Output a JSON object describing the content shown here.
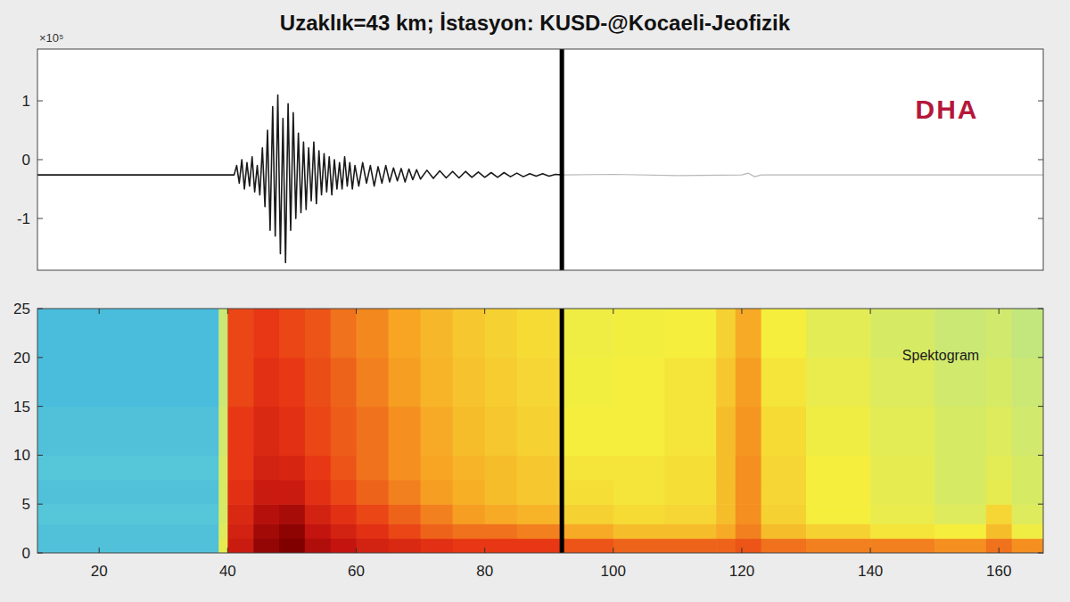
{
  "chart_data": [
    {
      "type": "line",
      "title": "Uzaklık=43 km; İstasyon: KUSD-@Kocaeli-Jeofizik",
      "annotations": [
        "×10⁵",
        "DHA"
      ],
      "xlim": [
        10.4,
        166.9
      ],
      "ylim": [
        -1.88,
        1.88
      ],
      "yticks": [
        -1,
        0,
        1
      ],
      "tick_labels": "y",
      "grid": false,
      "cursor_x": 92,
      "series": [
        {
          "color": "#1a1a1a",
          "x": [
            10.4,
            20,
            30,
            41,
            41.4,
            41.8,
            42.2,
            42.6,
            43.0,
            43.4,
            43.8,
            44.2,
            44.6,
            45.0,
            45.4,
            45.8,
            46.2,
            46.6,
            47.0,
            47.4,
            47.8,
            48.2,
            48.6,
            49.0,
            49.4,
            49.8,
            50.2,
            50.6,
            51.0,
            51.4,
            51.8,
            52.2,
            52.6,
            53.0,
            53.4,
            53.8,
            54.2,
            54.6,
            55.0,
            55.4,
            55.8,
            56.2,
            56.6,
            57.0,
            57.4,
            57.8,
            58.2,
            58.6,
            59.0,
            59.4,
            59.8,
            60.4,
            61.0,
            61.6,
            62.2,
            62.8,
            63.4,
            64.0,
            64.6,
            65.2,
            65.8,
            66.4,
            67.0,
            67.6,
            68.2,
            68.8,
            69.4,
            70,
            71,
            72,
            73,
            74,
            75,
            76,
            77,
            78,
            79,
            80,
            81,
            82,
            83,
            84,
            85,
            86,
            87,
            88,
            89,
            90,
            91,
            92
          ],
          "values": [
            -0.26,
            -0.26,
            -0.26,
            -0.26,
            -0.1,
            -0.4,
            0.0,
            -0.5,
            -0.05,
            -0.45,
            0.05,
            -0.55,
            -0.1,
            -0.6,
            0.2,
            -0.8,
            0.5,
            -1.2,
            0.9,
            -1.3,
            1.1,
            -1.6,
            0.7,
            -1.75,
            0.95,
            -1.2,
            0.8,
            -1.0,
            0.45,
            -0.9,
            0.3,
            -0.85,
            0.2,
            -0.7,
            0.3,
            -0.75,
            0.15,
            -0.6,
            0.1,
            -0.55,
            0.05,
            -0.6,
            0.0,
            -0.5,
            -0.05,
            -0.5,
            0.05,
            -0.45,
            -0.05,
            -0.5,
            -0.1,
            -0.45,
            -0.05,
            -0.4,
            -0.1,
            -0.45,
            -0.12,
            -0.4,
            -0.1,
            -0.38,
            -0.14,
            -0.36,
            -0.15,
            -0.38,
            -0.16,
            -0.34,
            -0.17,
            -0.33,
            -0.18,
            -0.32,
            -0.19,
            -0.31,
            -0.2,
            -0.31,
            -0.2,
            -0.3,
            -0.21,
            -0.3,
            -0.22,
            -0.3,
            -0.22,
            -0.29,
            -0.23,
            -0.29,
            -0.24,
            -0.28,
            -0.24,
            -0.28,
            -0.25,
            -0.26
          ]
        },
        {
          "color": "#b8b8b8",
          "x": [
            92,
            100,
            110,
            120,
            121,
            122,
            123,
            140,
            166.9
          ],
          "values": [
            -0.26,
            -0.25,
            -0.27,
            -0.26,
            -0.23,
            -0.29,
            -0.26,
            -0.26,
            -0.26
          ]
        }
      ]
    },
    {
      "type": "heatmap",
      "annotations": [
        "Spektogram"
      ],
      "xlim": [
        10.4,
        166.9
      ],
      "ylim": [
        0,
        25
      ],
      "xticks": [
        20,
        40,
        60,
        80,
        100,
        120,
        140,
        160
      ],
      "yticks": [
        0,
        5,
        10,
        15,
        20,
        25
      ],
      "cursor_x": 92,
      "zlim": [
        0,
        1
      ],
      "x_edges": [
        10.4,
        38.6,
        40,
        44,
        48,
        52,
        56,
        60,
        65,
        70,
        75,
        80,
        85,
        92,
        100,
        108,
        116,
        119,
        123,
        130,
        140,
        150,
        158,
        162,
        166.9
      ],
      "y_edges": [
        0,
        1.5,
        3,
        5,
        7.5,
        10,
        15,
        20,
        25
      ],
      "cells": [
        [
          0.1,
          0.45,
          0.88,
          0.97,
          1.0,
          0.93,
          0.9,
          0.86,
          0.84,
          0.82,
          0.8,
          0.8,
          0.8,
          0.76,
          0.74,
          0.74,
          0.74,
          0.76,
          0.72,
          0.7,
          0.7,
          0.68,
          0.72,
          0.68
        ],
        [
          0.1,
          0.42,
          0.86,
          0.95,
          0.98,
          0.9,
          0.86,
          0.82,
          0.78,
          0.74,
          0.72,
          0.72,
          0.7,
          0.64,
          0.6,
          0.6,
          0.64,
          0.7,
          0.6,
          0.56,
          0.52,
          0.5,
          0.6,
          0.48
        ],
        [
          0.12,
          0.4,
          0.84,
          0.92,
          0.94,
          0.86,
          0.82,
          0.78,
          0.74,
          0.7,
          0.66,
          0.64,
          0.62,
          0.56,
          0.54,
          0.55,
          0.6,
          0.68,
          0.56,
          0.5,
          0.46,
          0.42,
          0.55,
          0.42
        ],
        [
          0.1,
          0.4,
          0.82,
          0.88,
          0.88,
          0.82,
          0.78,
          0.74,
          0.7,
          0.66,
          0.63,
          0.6,
          0.58,
          0.53,
          0.52,
          0.53,
          0.6,
          0.68,
          0.55,
          0.5,
          0.45,
          0.4,
          0.45,
          0.4
        ],
        [
          0.12,
          0.4,
          0.8,
          0.86,
          0.85,
          0.8,
          0.76,
          0.72,
          0.68,
          0.65,
          0.62,
          0.6,
          0.58,
          0.52,
          0.52,
          0.53,
          0.6,
          0.68,
          0.55,
          0.5,
          0.45,
          0.4,
          0.44,
          0.4
        ],
        [
          0.1,
          0.38,
          0.8,
          0.84,
          0.82,
          0.78,
          0.75,
          0.72,
          0.68,
          0.64,
          0.6,
          0.58,
          0.56,
          0.5,
          0.5,
          0.52,
          0.6,
          0.67,
          0.54,
          0.48,
          0.44,
          0.4,
          0.42,
          0.38
        ],
        [
          0.08,
          0.36,
          0.78,
          0.82,
          0.8,
          0.77,
          0.74,
          0.7,
          0.66,
          0.62,
          0.59,
          0.57,
          0.55,
          0.49,
          0.5,
          0.52,
          0.58,
          0.66,
          0.52,
          0.46,
          0.42,
          0.38,
          0.4,
          0.36
        ],
        [
          0.08,
          0.36,
          0.78,
          0.8,
          0.78,
          0.76,
          0.72,
          0.69,
          0.65,
          0.61,
          0.58,
          0.56,
          0.54,
          0.48,
          0.49,
          0.5,
          0.56,
          0.64,
          0.5,
          0.44,
          0.4,
          0.36,
          0.38,
          0.34
        ]
      ]
    }
  ]
}
